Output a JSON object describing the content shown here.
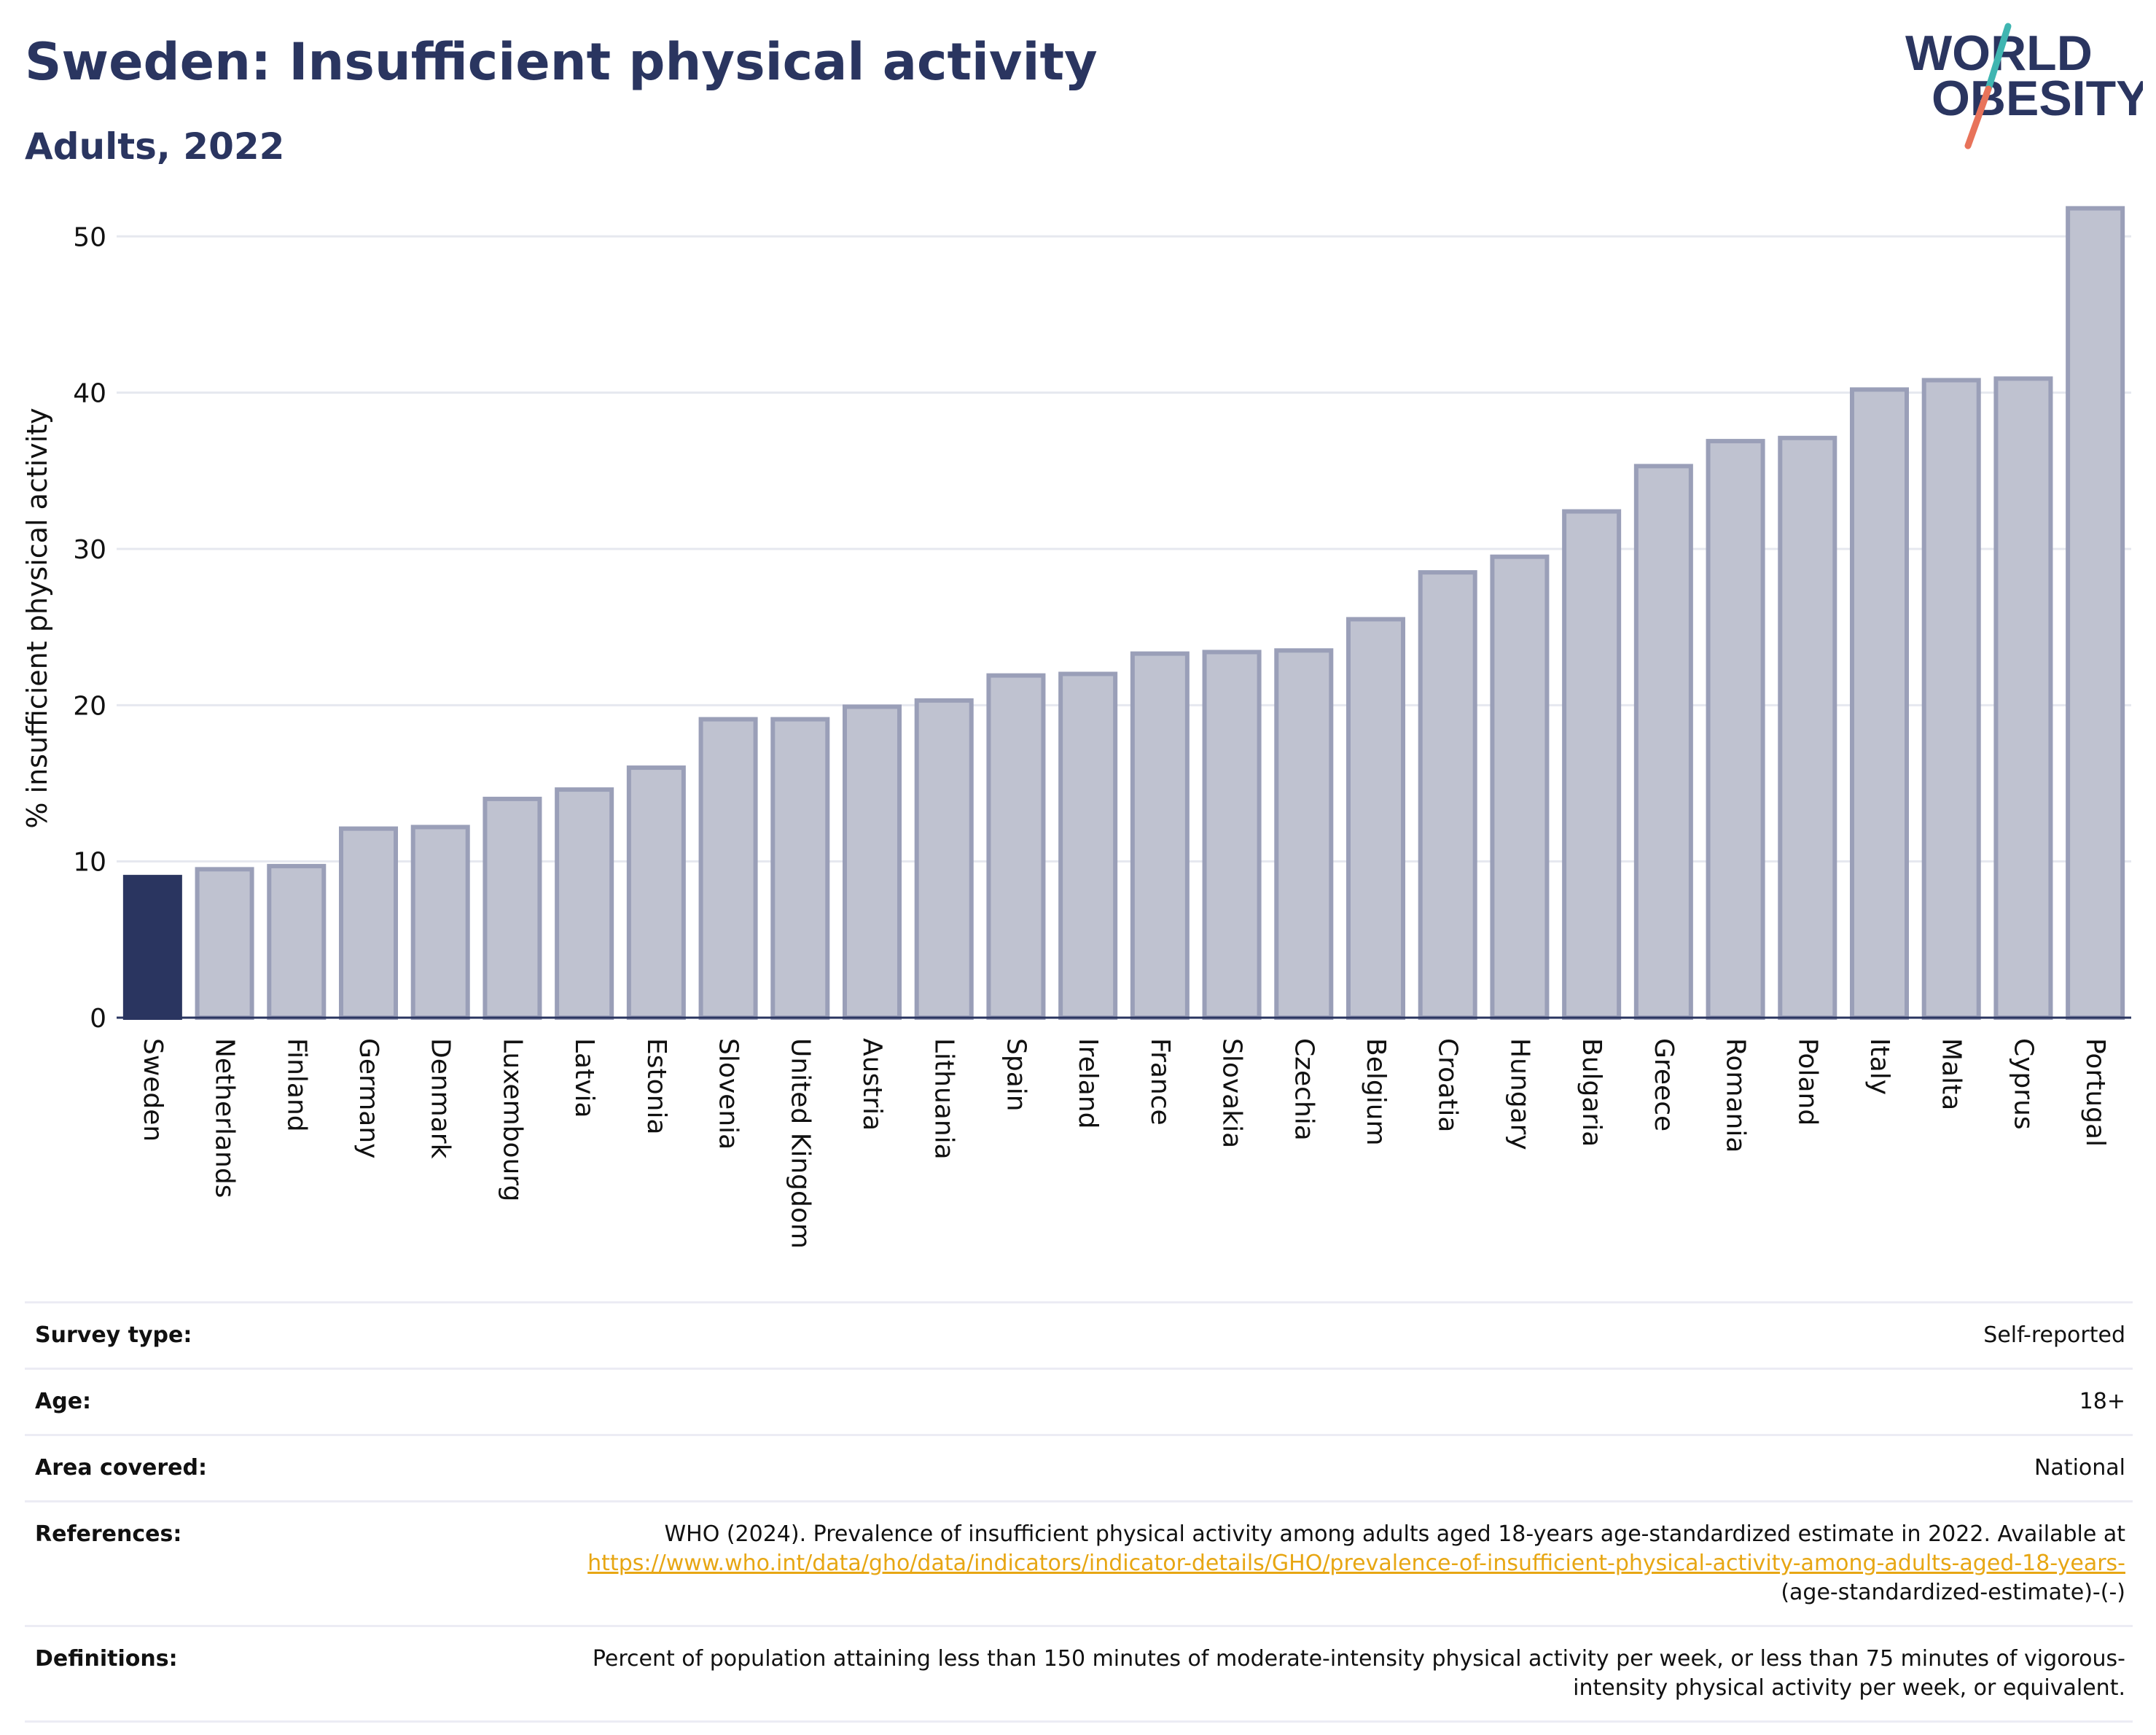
{
  "header": {
    "title": "Sweden: Insufficient physical activity",
    "subtitle": "Adults, 2022"
  },
  "logo": {
    "line1": "WORLD",
    "line2": "OBESITY",
    "colors": {
      "text": "#2a3560",
      "slash_top": "#3fb5b1",
      "slash_bottom": "#e8735a"
    }
  },
  "colors": {
    "highlight": "#2a3560",
    "bar": "#bfc2d0",
    "bar_border": "#9a9fb8",
    "grid": "#e6e8ef",
    "axis": "#2a3560"
  },
  "chart_data": {
    "type": "bar",
    "ylabel": "% insufficient physical activity",
    "xlabel": "",
    "ylim": [
      0,
      53
    ],
    "yticks": [
      0,
      10,
      20,
      30,
      40,
      50
    ],
    "grid": true,
    "highlight": "Sweden",
    "categories": [
      "Sweden",
      "Netherlands",
      "Finland",
      "Germany",
      "Denmark",
      "Luxembourg",
      "Latvia",
      "Estonia",
      "Slovenia",
      "United Kingdom",
      "Austria",
      "Lithuania",
      "Spain",
      "Ireland",
      "France",
      "Slovakia",
      "Czechia",
      "Belgium",
      "Croatia",
      "Hungary",
      "Bulgaria",
      "Greece",
      "Romania",
      "Poland",
      "Italy",
      "Malta",
      "Cyprus",
      "Portugal"
    ],
    "values": [
      9.0,
      9.5,
      9.7,
      12.1,
      12.2,
      14.0,
      14.6,
      16.0,
      19.1,
      19.1,
      19.9,
      20.3,
      21.9,
      22.0,
      23.3,
      23.4,
      23.5,
      25.5,
      28.5,
      29.5,
      32.4,
      35.3,
      36.9,
      37.1,
      40.2,
      40.8,
      40.9,
      51.8
    ]
  },
  "meta": {
    "survey_type": {
      "label": "Survey type:",
      "value": "Self-reported"
    },
    "age": {
      "label": "Age:",
      "value": "18+"
    },
    "area": {
      "label": "Area covered:",
      "value": "National"
    },
    "references": {
      "label": "References:",
      "text_before": "WHO (2024). Prevalence of insufficient physical activity among adults aged 18-years age-standardized estimate in 2022. Available at",
      "link": "https://www.who.int/data/gho/data/indicators/indicator-details/GHO/prevalence-of-insufficient-physical-activity-among-adults-aged-18-years-",
      "text_after": "(age-standardized-estimate)-(-)"
    },
    "definitions": {
      "label": "Definitions:",
      "value": "Percent of population attaining less than 150 minutes of moderate-intensity physical activity per week, or less than 75 minutes of vigorous-intensity physical activity per week, or equivalent."
    }
  }
}
